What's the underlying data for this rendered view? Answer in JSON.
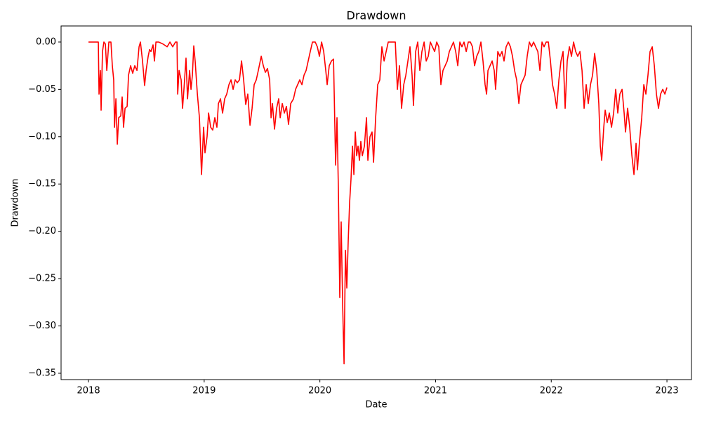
{
  "chart_data": {
    "type": "line",
    "title": "Drawdown",
    "x_label": "Date",
    "y_label": "Drawdown",
    "color": "#ff0000",
    "x": [
      2018.0,
      2018.085,
      2018.091,
      2018.103,
      2018.109,
      2018.121,
      2018.133,
      2018.146,
      2018.158,
      2018.176,
      2018.194,
      2018.206,
      2018.218,
      2018.225,
      2018.237,
      2018.249,
      2018.261,
      2018.279,
      2018.291,
      2018.303,
      2018.316,
      2018.334,
      2018.346,
      2018.364,
      2018.382,
      2018.4,
      2018.419,
      2018.437,
      2018.449,
      2018.467,
      2018.485,
      2018.498,
      2018.516,
      2018.528,
      2018.54,
      2018.558,
      2018.57,
      2018.583,
      2018.607,
      2018.643,
      2018.68,
      2018.704,
      2018.728,
      2018.752,
      2018.765,
      2018.771,
      2018.783,
      2018.801,
      2018.813,
      2018.825,
      2018.843,
      2018.856,
      2018.874,
      2018.886,
      2018.898,
      2018.91,
      2018.922,
      2018.941,
      2018.959,
      2018.977,
      2018.995,
      2019.007,
      2019.025,
      2019.038,
      2019.056,
      2019.074,
      2019.092,
      2019.11,
      2019.123,
      2019.141,
      2019.159,
      2019.177,
      2019.195,
      2019.214,
      2019.232,
      2019.25,
      2019.268,
      2019.286,
      2019.305,
      2019.323,
      2019.341,
      2019.359,
      2019.377,
      2019.396,
      2019.414,
      2019.432,
      2019.45,
      2019.468,
      2019.493,
      2019.511,
      2019.529,
      2019.547,
      2019.566,
      2019.578,
      2019.59,
      2019.608,
      2019.626,
      2019.644,
      2019.657,
      2019.675,
      2019.693,
      2019.711,
      2019.729,
      2019.748,
      2019.772,
      2019.79,
      2019.808,
      2019.826,
      2019.845,
      2019.863,
      2019.881,
      2019.899,
      2019.917,
      2019.936,
      2019.96,
      2019.978,
      2019.996,
      2020.015,
      2020.033,
      2020.051,
      2020.063,
      2020.081,
      2020.1,
      2020.118,
      2020.136,
      2020.148,
      2020.16,
      2020.172,
      2020.184,
      2020.197,
      2020.209,
      2020.221,
      2020.233,
      2020.245,
      2020.257,
      2020.269,
      2020.282,
      2020.294,
      2020.306,
      2020.318,
      2020.33,
      2020.342,
      2020.354,
      2020.367,
      2020.385,
      2020.403,
      2020.415,
      2020.433,
      2020.451,
      2020.464,
      2020.482,
      2020.5,
      2020.518,
      2020.536,
      2020.555,
      2020.573,
      2020.591,
      2020.615,
      2020.634,
      2020.652,
      2020.67,
      2020.688,
      2020.706,
      2020.725,
      2020.743,
      2020.761,
      2020.779,
      2020.797,
      2020.809,
      2020.828,
      2020.846,
      2020.864,
      2020.882,
      2020.901,
      2020.919,
      2020.937,
      2020.955,
      2020.973,
      2020.992,
      2021.01,
      2021.028,
      2021.046,
      2021.064,
      2021.083,
      2021.101,
      2021.119,
      2021.137,
      2021.155,
      2021.174,
      2021.192,
      2021.21,
      2021.228,
      2021.246,
      2021.265,
      2021.283,
      2021.301,
      2021.319,
      2021.337,
      2021.356,
      2021.374,
      2021.392,
      2021.41,
      2021.428,
      2021.441,
      2021.453,
      2021.471,
      2021.489,
      2021.507,
      2021.519,
      2021.538,
      2021.556,
      2021.574,
      2021.592,
      2021.61,
      2021.629,
      2021.647,
      2021.665,
      2021.683,
      2021.701,
      2021.72,
      2021.738,
      2021.756,
      2021.774,
      2021.792,
      2021.811,
      2021.829,
      2021.847,
      2021.865,
      2021.884,
      2021.902,
      2021.92,
      2021.938,
      2021.956,
      2021.975,
      2021.993,
      2022.011,
      2022.029,
      2022.047,
      2022.066,
      2022.084,
      2022.102,
      2022.12,
      2022.138,
      2022.157,
      2022.175,
      2022.193,
      2022.211,
      2022.229,
      2022.248,
      2022.266,
      2022.284,
      2022.302,
      2022.32,
      2022.339,
      2022.357,
      2022.375,
      2022.393,
      2022.411,
      2022.424,
      2022.436,
      2022.454,
      2022.466,
      2022.484,
      2022.502,
      2022.521,
      2022.539,
      2022.557,
      2022.575,
      2022.593,
      2022.612,
      2022.63,
      2022.642,
      2022.66,
      2022.678,
      2022.697,
      2022.715,
      2022.733,
      2022.745,
      2022.763,
      2022.782,
      2022.8,
      2022.818,
      2022.836,
      2022.854,
      2022.873,
      2022.891,
      2022.909,
      2022.927,
      2022.945,
      2022.964,
      2022.982,
      2023.0
    ],
    "values": [
      0,
      0,
      -0.055,
      -0.03,
      -0.072,
      -0.01,
      0,
      -0.002,
      -0.03,
      0,
      0,
      -0.025,
      -0.04,
      -0.09,
      -0.06,
      -0.108,
      -0.08,
      -0.078,
      -0.058,
      -0.09,
      -0.07,
      -0.068,
      -0.035,
      -0.025,
      -0.033,
      -0.025,
      -0.03,
      -0.005,
      0,
      -0.02,
      -0.046,
      -0.03,
      -0.015,
      -0.008,
      -0.01,
      -0.003,
      -0.02,
      0,
      0,
      -0.002,
      -0.005,
      0,
      -0.005,
      0,
      0,
      -0.055,
      -0.03,
      -0.04,
      -0.07,
      -0.05,
      -0.017,
      -0.06,
      -0.03,
      -0.05,
      -0.035,
      -0.004,
      -0.02,
      -0.055,
      -0.08,
      -0.14,
      -0.09,
      -0.117,
      -0.1,
      -0.075,
      -0.09,
      -0.093,
      -0.08,
      -0.09,
      -0.065,
      -0.06,
      -0.075,
      -0.06,
      -0.055,
      -0.045,
      -0.04,
      -0.05,
      -0.04,
      -0.043,
      -0.04,
      -0.02,
      -0.04,
      -0.066,
      -0.055,
      -0.088,
      -0.07,
      -0.045,
      -0.04,
      -0.03,
      -0.015,
      -0.025,
      -0.032,
      -0.028,
      -0.04,
      -0.08,
      -0.065,
      -0.092,
      -0.07,
      -0.06,
      -0.08,
      -0.065,
      -0.075,
      -0.068,
      -0.087,
      -0.065,
      -0.06,
      -0.05,
      -0.045,
      -0.04,
      -0.045,
      -0.035,
      -0.03,
      -0.02,
      -0.01,
      0,
      0,
      -0.005,
      -0.015,
      0,
      -0.01,
      -0.03,
      -0.045,
      -0.025,
      -0.02,
      -0.018,
      -0.13,
      -0.08,
      -0.155,
      -0.27,
      -0.19,
      -0.278,
      -0.34,
      -0.22,
      -0.26,
      -0.21,
      -0.17,
      -0.145,
      -0.11,
      -0.14,
      -0.095,
      -0.12,
      -0.11,
      -0.125,
      -0.105,
      -0.12,
      -0.11,
      -0.08,
      -0.125,
      -0.1,
      -0.095,
      -0.127,
      -0.08,
      -0.045,
      -0.04,
      -0.005,
      -0.02,
      -0.01,
      0,
      0,
      0,
      0,
      -0.05,
      -0.025,
      -0.07,
      -0.045,
      -0.035,
      -0.02,
      -0.005,
      -0.035,
      -0.067,
      -0.01,
      0,
      -0.03,
      -0.01,
      0,
      -0.02,
      -0.015,
      0,
      -0.005,
      -0.01,
      0,
      -0.005,
      -0.045,
      -0.03,
      -0.025,
      -0.02,
      -0.01,
      -0.005,
      0,
      -0.01,
      -0.025,
      0,
      -0.005,
      0,
      -0.01,
      0,
      0,
      -0.005,
      -0.025,
      -0.015,
      -0.01,
      0,
      -0.02,
      -0.045,
      -0.055,
      -0.03,
      -0.025,
      -0.02,
      -0.03,
      -0.05,
      -0.01,
      -0.015,
      -0.01,
      -0.02,
      -0.005,
      0,
      -0.005,
      -0.015,
      -0.03,
      -0.04,
      -0.065,
      -0.045,
      -0.04,
      -0.035,
      -0.015,
      0,
      -0.005,
      0,
      -0.005,
      -0.01,
      -0.03,
      0,
      -0.005,
      0,
      0,
      -0.02,
      -0.045,
      -0.055,
      -0.07,
      -0.04,
      -0.02,
      -0.01,
      -0.07,
      -0.02,
      -0.005,
      -0.015,
      0,
      -0.01,
      -0.015,
      -0.01,
      -0.03,
      -0.07,
      -0.045,
      -0.065,
      -0.045,
      -0.035,
      -0.012,
      -0.03,
      -0.065,
      -0.11,
      -0.125,
      -0.09,
      -0.072,
      -0.085,
      -0.075,
      -0.09,
      -0.075,
      -0.05,
      -0.075,
      -0.055,
      -0.05,
      -0.075,
      -0.095,
      -0.07,
      -0.09,
      -0.12,
      -0.14,
      -0.107,
      -0.135,
      -0.105,
      -0.08,
      -0.045,
      -0.055,
      -0.035,
      -0.01,
      -0.005,
      -0.025,
      -0.055,
      -0.07,
      -0.055,
      -0.05,
      -0.055,
      -0.048
    ],
    "xlim": [
      2017.763,
      2023.212
    ],
    "xticks": [
      2018,
      2019,
      2020,
      2021,
      2022,
      2023
    ],
    "ylim": [
      -0.3567,
      0.017
    ],
    "yticks": [
      {
        "value": 0,
        "label": "0.00"
      },
      {
        "value": -0.05,
        "label": "−0.05"
      },
      {
        "value": -0.1,
        "label": "−0.10"
      },
      {
        "value": -0.15,
        "label": "−0.15"
      },
      {
        "value": -0.2,
        "label": "−0.20"
      },
      {
        "value": -0.25,
        "label": "−0.25"
      },
      {
        "value": -0.3,
        "label": "−0.30"
      },
      {
        "value": -0.35,
        "label": "−0.35"
      }
    ]
  }
}
